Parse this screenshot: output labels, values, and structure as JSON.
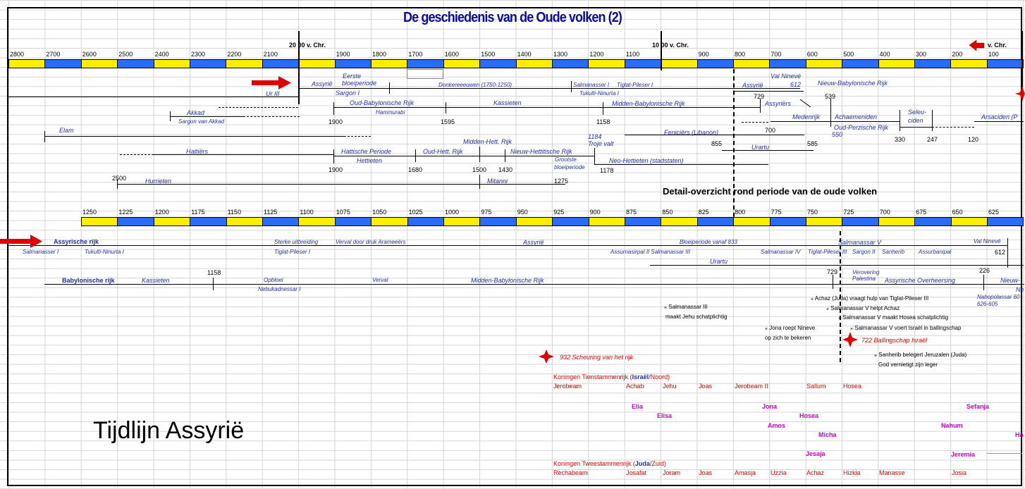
{
  "title": "De geschiedenis van de Oude volken (2)",
  "big_title": "Tijdlijn Assyrië",
  "detail_heading": "Detail-overzicht rond periode van de oude volken",
  "axis1": {
    "marker_2000": "20 00 v. Chr.",
    "marker_1000": "10 00 v. Chr.",
    "marker_vchr": "v. Chr.",
    "ticks": [
      "2800",
      "2700",
      "2600",
      "2500",
      "2400",
      "2300",
      "2200",
      "2100",
      "",
      "1900",
      "1800",
      "1700",
      "1600",
      "1500",
      "1400",
      "1300",
      "1200",
      "1100",
      "",
      "900",
      "800",
      "700",
      "600",
      "500",
      "400",
      "300",
      "200",
      "100"
    ]
  },
  "axis2": {
    "ticks": [
      "1250",
      "1225",
      "1200",
      "1175",
      "1150",
      "1125",
      "1100",
      "1075",
      "1050",
      "1025",
      "1000",
      "975",
      "950",
      "925",
      "900",
      "875",
      "850",
      "825",
      "800",
      "775",
      "750",
      "725",
      "700",
      "675",
      "650",
      "625"
    ]
  },
  "colors": {
    "yellow": "#ffee00",
    "blue": "#2a6cf5",
    "label_blue": "#1f2fa8",
    "red": "#e00000",
    "magenta": "#cc00cc"
  },
  "upper": {
    "ur3": "Ur III",
    "assyrie": "Assyrië",
    "eerste": "Eerste",
    "bloeiperiode": "bloeiperiode",
    "sargon1": "Sargon I",
    "donker": "Donkereeeuwen (1750-1250)",
    "salm1": "Salmanasser I",
    "tiglat1": "Tiglat-Pileser I",
    "tukulti": "Tukulti-Ninurta I",
    "assyrie2": "Assyrië",
    "valnin": "Val Ninevé",
    "n612": "612",
    "nieuwbab": "Nieuw-Babylonische Rijk",
    "akkad": "Akkad",
    "sargonakk": "Sargon van Akkad",
    "oudbab": "Oud-Babylonische Rijk",
    "hammurabi": "Hammurabi",
    "n1900a": "1900",
    "kassieten": "Kassieten",
    "n1595": "1595",
    "middenbab": "Midden-Babylonische Rijk",
    "n1158": "1158",
    "n729": "729",
    "assyriers": "Assyriërs",
    "n539": "539",
    "medenrijk": "Medenrijk",
    "achaem": "Achaemeniden",
    "seleu": "Seleu-",
    "ciden": "ciden",
    "arsaciden": "Arsaciden (P",
    "n700": "700",
    "oudperz": "Oud-Perzische Rijk",
    "n550": "550",
    "n330": "330",
    "n247": "247",
    "n120": "120",
    "elam": "Elam",
    "feniciers": "Feniciërs (Libanon)",
    "n1184": "1184",
    "trojevalt": "Troje valt",
    "middenhett": "Midden-Hett. Rijk",
    "n855": "855",
    "urartu": "Urartu",
    "n585": "585",
    "hattiers": "Hattiërs",
    "hattische": "Hattische Periode",
    "oudhett": "Oud-Hett. Rijk",
    "nieuwhett": "Nieuw-Hettitische Rijk",
    "grootste": "Grootste",
    "bloeiperiode2": "bloeiperiode",
    "hettieten": "Hettieten",
    "neohett": "Neo-Hettieten (stadstaten)",
    "n1900b": "1900",
    "n1680": "1680",
    "n1500": "1500",
    "n1430": "1430",
    "n1178": "1178",
    "n2500": "2500",
    "hurrieten": "Hurrieten",
    "mitanni": "Mitanni",
    "n1275": "1275"
  },
  "lower": {
    "assyrisch": "Assyrische rijk",
    "sterke": "Sterke uitbreiding",
    "verval1": "Verval door druk Arameeërs",
    "assyrie3": "Assyrië",
    "salm1b": "Salmanasser I",
    "tukultib": "Tukulti-Ninurta I",
    "tiglat1b": "Tiglat-Pileser I",
    "bloei833": "Bloeiperiode vanaf 833",
    "salm5": "Salmanassar V",
    "valnin2": "Val Ninevé",
    "n612b": "612",
    "assurnas": "Assurnasirpal II Salmanassar III",
    "salm4": "Salmanassar IV",
    "tiglat3": "Tiglat-Pileser III",
    "sargon2": "Sargon II",
    "sanherib": "Sanherib",
    "assurbanipal": "Assurbanipal",
    "urartu2": "Urartu",
    "n1158b": "1158",
    "n729b": "729",
    "verovering": "Verovering",
    "palestina": "Palestina",
    "n226": "226",
    "babylonisch": "Babylonische rijk",
    "kassieten2": "Kassieten",
    "opbloei": "Opbloei",
    "nebukad1": "Nebukadnessar I",
    "verval2": "Verval",
    "middenbab2": "Midden-Babylonische Rijk",
    "assyrov": "Assyrische Overheersing",
    "nieuwb": "Nieuw-",
    "ne": "Ne",
    "nabopol": "Nabopolassar 60",
    "n626": "626-605",
    "ev1": "Achaz (Juda) vraagt hulp van Tiglat-Pileser III",
    "ev2": "Salmanassar V helpt Achaz",
    "ev3a": "Salmanassar III",
    "ev3b": "maakt Jehu schatplichtig",
    "ev4": "Salmanassar V maakt Hosea schatplichtig",
    "ev5a": "Jona roept Nineve",
    "ev5b": "op zich te bekeren",
    "ev6": "Salmanassar V voert Israël in ballingschap",
    "ev7": "722 Ballingschap Israël",
    "ev8": "932 Scheuring van het rijk",
    "ev9a": "Sanherib belegert Jeruzalen (Juda)",
    "ev9b": "God vernietigt zijn leger"
  },
  "kings": {
    "north_label_pre": "Koningen Tienstammenrijk (",
    "north_label_mid": "Israël",
    "north_label_post": "/Noord)",
    "north": [
      "Jerobeam",
      "Achab",
      "Jehu",
      "Joas",
      "Jerobeam II",
      "Sallum",
      "Hosea"
    ],
    "south_label_pre": "Koningen Tweestammenrijk (",
    "south_label_mid": "Juda",
    "south_label_post": "/Zuid)",
    "south": [
      "Rechabeam",
      "Josafat",
      "Joram",
      "Joas",
      "Amasja",
      "Uzzia",
      "Achaz",
      "Hizkia",
      "Manasse",
      "Josia"
    ]
  },
  "prophets": [
    "Elia",
    "Elisa",
    "Jona",
    "Amos",
    "Hosea",
    "Micha",
    "Jesaja",
    "Nahum",
    "Sefanja",
    "Jeremia",
    "Ha"
  ]
}
